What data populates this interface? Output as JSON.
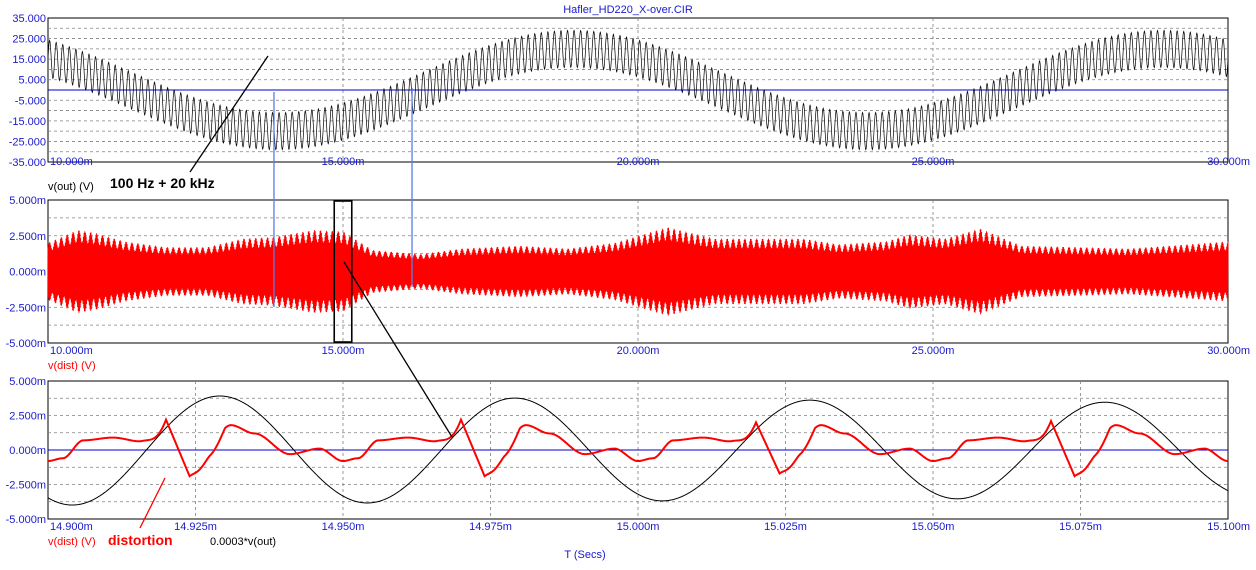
{
  "title": "Hafler_HD220_X-over.CIR",
  "x_axis_title": "T (Secs)",
  "annotations": {
    "sum_label": "100 Hz + 20 kHz",
    "distortion_label": "distortion"
  },
  "colors": {
    "black_trace": "#000000",
    "red_trace": "#ff0000",
    "zero_line": "#0000cc",
    "cursor": "#5a7de6",
    "tick_text": "#1a1acc",
    "grid": "#808080"
  },
  "chart_data": [
    {
      "type": "line",
      "id": "top",
      "x_unit": "s",
      "xlim": [
        0.01,
        0.03
      ],
      "ylim": [
        -35,
        35
      ],
      "grid": true,
      "x_ticks": [
        "10.000m",
        "15.000m",
        "20.000m",
        "25.000m",
        "30.000m"
      ],
      "y_ticks": [
        "35.000",
        "25.000",
        "15.000",
        "5.000",
        "-5.000",
        "-15.000",
        "-25.000",
        "-35.000"
      ],
      "series": [
        {
          "name": "v(out) (V)",
          "color": "#000000",
          "signal": "sum",
          "components": [
            {
              "freq_hz": 100,
              "amp_v": 20,
              "phase_deg": 130
            },
            {
              "freq_hz": 20000,
              "amp_v": 9
            }
          ]
        }
      ],
      "cursors_x": [
        0.01383,
        0.01617
      ]
    },
    {
      "type": "line",
      "id": "middle",
      "x_unit": "s",
      "xlim": [
        0.01,
        0.03
      ],
      "ylim": [
        -5,
        5
      ],
      "grid": true,
      "x_ticks": [
        "10.000m",
        "15.000m",
        "20.000m",
        "25.000m",
        "30.000m"
      ],
      "y_ticks": [
        "5.000m",
        "2.500m",
        "0.000m",
        "-2.500m",
        "-5.000m"
      ],
      "series": [
        {
          "name": "v(dist) (V)",
          "color": "#ff0000",
          "signal": "hf_band",
          "carrier_hz": 20000,
          "envelope_points": [
            [
              0.01,
              2.0
            ],
            [
              0.0105,
              2.9
            ],
            [
              0.0108,
              2.7
            ],
            [
              0.0113,
              2.1
            ],
            [
              0.012,
              1.7
            ],
            [
              0.0127,
              1.7
            ],
            [
              0.0133,
              2.3
            ],
            [
              0.0138,
              2.4
            ],
            [
              0.0145,
              2.9
            ],
            [
              0.015,
              2.8
            ],
            [
              0.0155,
              1.5
            ],
            [
              0.0163,
              1.2
            ],
            [
              0.017,
              1.6
            ],
            [
              0.018,
              1.8
            ],
            [
              0.0188,
              1.6
            ],
            [
              0.0196,
              2.0
            ],
            [
              0.0205,
              3.1
            ],
            [
              0.0213,
              2.3
            ],
            [
              0.022,
              2.3
            ],
            [
              0.0228,
              2.3
            ],
            [
              0.0234,
              1.9
            ],
            [
              0.0242,
              2.1
            ],
            [
              0.0246,
              2.6
            ],
            [
              0.0252,
              2.3
            ],
            [
              0.0258,
              3.0
            ],
            [
              0.0265,
              1.8
            ],
            [
              0.0275,
              1.7
            ],
            [
              0.0283,
              1.6
            ],
            [
              0.029,
              1.8
            ],
            [
              0.03,
              2.1
            ]
          ]
        }
      ],
      "cursors_x": [
        0.01383,
        0.01617
      ],
      "zoom_box_x": [
        0.01497,
        0.01503
      ]
    },
    {
      "type": "line",
      "id": "bottom",
      "x_unit": "s",
      "xlim": [
        0.0149,
        0.0151
      ],
      "ylim": [
        -5,
        5
      ],
      "grid": true,
      "x_ticks": [
        "14.900m",
        "14.925m",
        "14.950m",
        "14.975m",
        "15.000m",
        "15.025m",
        "15.050m",
        "15.075m",
        "15.100m"
      ],
      "y_ticks": [
        "5.000m",
        "2.500m",
        "0.000m",
        "-2.500m",
        "-5.000m"
      ],
      "series": [
        {
          "name": "v(dist) (V)",
          "color": "#ff0000",
          "signal": "distortion",
          "period_s": 5e-05,
          "keypoints": [
            [
              0.0,
              -0.4
            ],
            [
              0.05,
              0.7
            ],
            [
              0.12,
              1.8
            ],
            [
              0.2,
              1.2
            ],
            [
              0.32,
              -0.3
            ],
            [
              0.42,
              0.1
            ],
            [
              0.5,
              -0.8
            ],
            [
              0.55,
              -0.6
            ],
            [
              0.62,
              0.7
            ],
            [
              0.72,
              0.9
            ],
            [
              0.82,
              0.6
            ],
            [
              0.9,
              0.0
            ],
            [
              0.94,
              -0.4
            ],
            [
              0.97,
              0.2
            ],
            [
              1.0,
              -0.4
            ]
          ],
          "spikes": [
            {
              "x": 0.01492,
              "hi": 2.2,
              "lo": -1.9
            },
            {
              "x": 0.01497,
              "hi": 2.2,
              "lo": -1.9
            },
            {
              "x": 0.01502,
              "hi": 2.0,
              "lo": -1.7
            },
            {
              "x": 0.01507,
              "hi": 2.1,
              "lo": -1.9
            }
          ]
        },
        {
          "name": "0.0003*v(out)",
          "color": "#000000",
          "signal": "sine",
          "freq_hz": 20000,
          "amp_v": 3.7,
          "phase_deg": 240,
          "amp_drift": 0.6
        }
      ]
    }
  ]
}
